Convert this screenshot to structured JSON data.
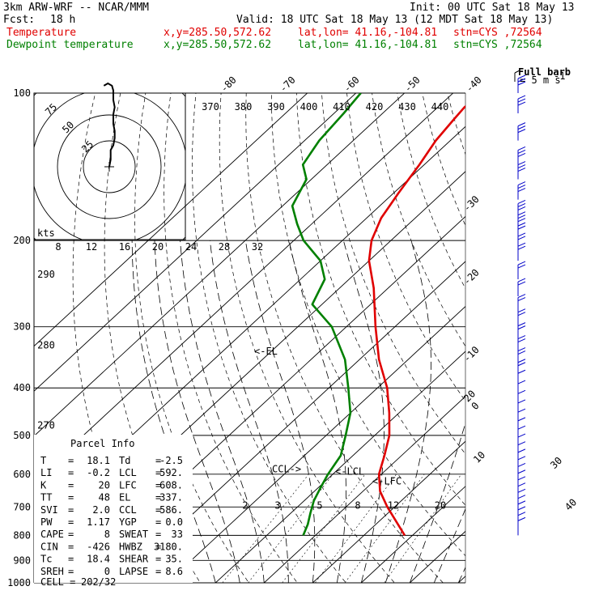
{
  "header": {
    "model": "3km ARW-WRF -- NCAR/MMM",
    "init": "Init: 00 UTC Sat 18 May 13",
    "fcst_label": "Fcst:",
    "fcst_value": "18 h",
    "valid": "Valid: 18 UTC Sat 18 May 13 (12 MDT Sat 18 May 13)",
    "rows": [
      {
        "name": "Temperature",
        "xy": "x,y=285.50,572.62",
        "latlon": "lat,lon= 41.16,-104.81",
        "stn": "stn=CYS ,72564",
        "color": "#e00000"
      },
      {
        "name": "Dewpoint temperature",
        "xy": "x,y=285.50,572.62",
        "latlon": "lat,lon= 41.16,-104.81",
        "stn": "stn=CYS ,72564",
        "color": "#008000"
      }
    ]
  },
  "wind_legend": {
    "line1": "Full barb",
    "line2": "= 5 m s",
    "exp": "-1"
  },
  "hodograph": {
    "units": "kts",
    "ring_labels": [
      "75",
      "50",
      "25"
    ]
  },
  "chart_data": {
    "type": "line",
    "y_axis": {
      "name": "pressure (hPa)",
      "log": true,
      "range": [
        1000,
        100
      ],
      "ticks": [
        "100",
        "200",
        "300",
        "400",
        "500",
        "600",
        "700",
        "800",
        "900",
        "1000"
      ]
    },
    "isotherm_labels": [
      "-80",
      "-70",
      "-60",
      "-50",
      "-40",
      "-30",
      "-20",
      "-10",
      "0",
      "10",
      "20",
      "30",
      "40"
    ],
    "isotherm_values": [
      -80,
      -70,
      -60,
      -50,
      -40,
      -30,
      -20,
      -10,
      0,
      10,
      20,
      30,
      40
    ],
    "theta_labels": [
      "370",
      "380",
      "390",
      "400",
      "410",
      "420",
      "430",
      "440"
    ],
    "hodo_speed_labels": [
      "8",
      "12",
      "16",
      "20",
      "24",
      "28",
      "32"
    ],
    "theta_left_labels": [
      "290",
      "280",
      "270"
    ],
    "mixing_ratio_labels": [
      "2",
      "3",
      "5",
      "8",
      "12",
      "20"
    ],
    "series": [
      {
        "name": "Temperature",
        "color": "#e00000",
        "points": [
          [
            800,
            18.4
          ],
          [
            700,
            8.5
          ],
          [
            650,
            3.5
          ],
          [
            600,
            -0.5
          ],
          [
            550,
            -3.5
          ],
          [
            500,
            -7
          ],
          [
            450,
            -12
          ],
          [
            400,
            -18
          ],
          [
            350,
            -26
          ],
          [
            300,
            -34
          ],
          [
            250,
            -43
          ],
          [
            220,
            -50
          ],
          [
            200,
            -54
          ],
          [
            180,
            -57
          ],
          [
            160,
            -59
          ],
          [
            140,
            -61
          ],
          [
            125,
            -63
          ],
          [
            113,
            -64
          ],
          [
            107,
            -64.5
          ],
          [
            100,
            -64
          ]
        ]
      },
      {
        "name": "Dewpoint temperature",
        "color": "#008000",
        "points": [
          [
            800,
            -2.5
          ],
          [
            760,
            -4
          ],
          [
            720,
            -6
          ],
          [
            680,
            -8
          ],
          [
            640,
            -9.5
          ],
          [
            600,
            -11
          ],
          [
            550,
            -12.5
          ],
          [
            500,
            -16
          ],
          [
            450,
            -20
          ],
          [
            400,
            -26
          ],
          [
            350,
            -33
          ],
          [
            300,
            -43
          ],
          [
            270,
            -52
          ],
          [
            240,
            -55
          ],
          [
            220,
            -60
          ],
          [
            200,
            -68
          ],
          [
            185,
            -73
          ],
          [
            170,
            -78
          ],
          [
            150,
            -81
          ],
          [
            140,
            -85
          ],
          [
            125,
            -87
          ],
          [
            110,
            -88
          ],
          [
            100,
            -89
          ]
        ]
      }
    ],
    "annotations": [
      {
        "text": "<-EL",
        "p": 337
      },
      {
        "text": "CCL->",
        "p": 586
      },
      {
        "text": "<-LCL",
        "p": 592
      },
      {
        "text": "<-LFC",
        "p": 608
      }
    ],
    "hodograph_path_kts": [
      [
        0,
        0
      ],
      [
        1,
        3
      ],
      [
        1,
        7
      ],
      [
        3,
        9
      ],
      [
        4,
        12
      ],
      [
        4,
        15
      ],
      [
        3,
        18
      ],
      [
        3,
        22
      ],
      [
        4,
        25
      ],
      [
        3,
        28
      ],
      [
        3,
        32
      ],
      [
        2,
        34
      ],
      [
        -1,
        35
      ],
      [
        -4,
        34
      ]
    ],
    "wind_barb_pressures": [
      100,
      110,
      125,
      140,
      150,
      165,
      180,
      190,
      200,
      210,
      220,
      240,
      260,
      280,
      300,
      320,
      340,
      360,
      380,
      400,
      420,
      440,
      460,
      480,
      500,
      520,
      540,
      560,
      580,
      600,
      620,
      640,
      660,
      680,
      700,
      720,
      740,
      760,
      780,
      800
    ]
  },
  "parcel_info": {
    "title": "Parcel Info",
    "rows": [
      [
        {
          "k": "T",
          "v": "18.1"
        },
        {
          "k": "Td",
          "v": "-2.5"
        }
      ],
      [
        {
          "k": "LI",
          "v": "-0.2"
        },
        {
          "k": "LCL",
          "v": "592."
        }
      ],
      [
        {
          "k": "K",
          "v": "20"
        },
        {
          "k": "LFC",
          "v": "608."
        }
      ],
      [
        {
          "k": "TT",
          "v": "48"
        },
        {
          "k": "EL",
          "v": "337."
        }
      ],
      [
        {
          "k": "SVI",
          "v": "2.0"
        },
        {
          "k": "CCL",
          "v": "586."
        }
      ],
      [
        {
          "k": "PW",
          "v": "1.17"
        },
        {
          "k": "YGP",
          "v": "0.0"
        }
      ],
      [
        {
          "k": "CAPE",
          "v": "8"
        },
        {
          "k": "SWEAT",
          "v": "33"
        }
      ],
      [
        {
          "k": "CIN",
          "v": "-426"
        },
        {
          "k": "HWBZ",
          "v": "3180."
        }
      ],
      [
        {
          "k": "Tc",
          "v": "18.4"
        },
        {
          "k": "SHEAR",
          "v": "35."
        }
      ],
      [
        {
          "k": "SREH",
          "v": "0"
        },
        {
          "k": "LAPSE",
          "v": "8.6"
        }
      ]
    ],
    "cell_label": "CELL =",
    "cell_value": "202/32"
  }
}
